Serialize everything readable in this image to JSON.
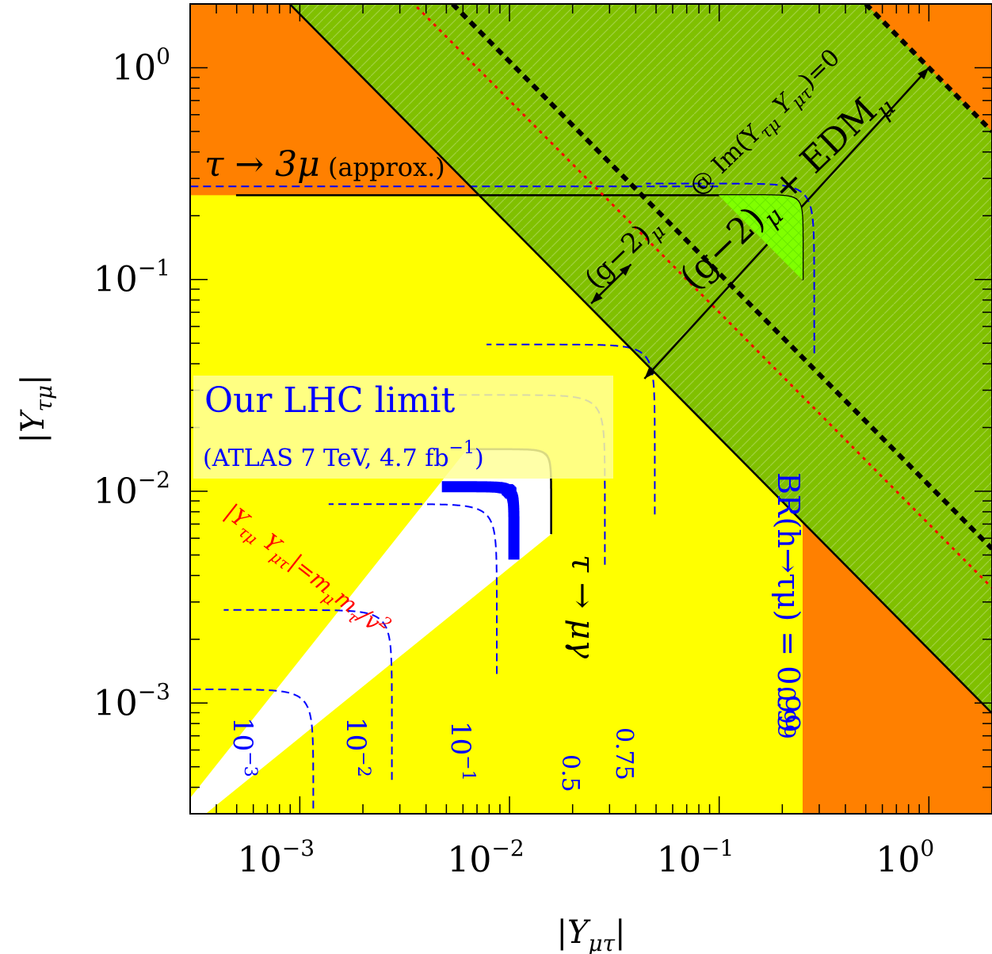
{
  "chart_data": {
    "type": "contour",
    "title": "",
    "xlabel": "|Y_{μτ}|",
    "ylabel": "|Y_{τμ}|",
    "x_scale": "log",
    "y_scale": "log",
    "xlim": [
      0.0003,
      2
    ],
    "ylim": [
      0.0003,
      2
    ],
    "grid": false,
    "x_ticks": [
      {
        "base": "10",
        "exp": "−3"
      },
      {
        "base": "10",
        "exp": "−2"
      },
      {
        "base": "10",
        "exp": "−1"
      },
      {
        "base": "10",
        "exp": "0"
      }
    ],
    "y_ticks": [
      {
        "base": "10",
        "exp": "−3"
      },
      {
        "base": "10",
        "exp": "−2"
      },
      {
        "base": "10",
        "exp": "−1"
      },
      {
        "base": "10",
        "exp": "0"
      }
    ],
    "tick_values": [
      0.001,
      0.01,
      0.1,
      1
    ],
    "regions": [
      {
        "id": "excluded-orange",
        "color": "#ff8000"
      },
      {
        "id": "excluded-tau-mu-gamma",
        "color": "#ffff00"
      },
      {
        "id": "g-2-favoured",
        "color": "#80ff00"
      },
      {
        "id": "g-2-and-edm",
        "color": "#80c000"
      }
    ],
    "boundaries": {
      "tau_3mu_limit": 0.25,
      "br_limit": 0.25,
      "tau_mu_gamma_limit": 0.0158,
      "our_lhc_limit": 0.0105,
      "diagonal_product": 0.00179,
      "edm_product": 1.0,
      "naturalness_product": 7e-06
    },
    "br_contours": [
      {
        "label": "10",
        "exp": "−3",
        "value": 0.001,
        "level": 0.00116
      },
      {
        "label": "10",
        "exp": "−2",
        "value": 0.01,
        "level": 0.00275
      },
      {
        "label": "10",
        "exp": "−1",
        "value": 0.1,
        "level": 0.0087
      },
      {
        "label": "0.5",
        "value": 0.5,
        "level": 0.0285
      },
      {
        "label": "0.75",
        "value": 0.75,
        "level": 0.0493
      },
      {
        "label": "0.99",
        "value": 0.99,
        "level": 0.284
      }
    ],
    "annotations": {
      "tau3mu": {
        "main": "τ → 3μ",
        "sub": "(approx.)"
      },
      "lhc": {
        "line1": "Our LHC limit",
        "line2": "(ATLAS 7 TeV, 4.7 fb",
        "line2_exp": "−1",
        "line2_end": ")"
      },
      "taumugamma": "τ → μγ",
      "br": "BR(h→τμ) = 0.99",
      "gm2": {
        "base": "(g−2)",
        "sub": "μ"
      },
      "gm2edm": {
        "base": "(g−2)",
        "sub": "μ",
        "mid": " + EDM",
        "sub2": "μ"
      },
      "imzero": {
        "text": "@ Im(Y",
        "s1": "τμ",
        "mid": "Y",
        "s2": "μτ",
        "end": ")=0"
      },
      "naturalness": {
        "text": "|Y",
        "s1": "τμ",
        "mid": "Y",
        "s2": "μτ",
        "eq": "|=m",
        "s3": "μ",
        "m2": "m",
        "s4": "τ",
        "div": "/v",
        "sup": "2"
      }
    },
    "colors": {
      "orange": "#ff8000",
      "yellow": "#ffff00",
      "lightgreen": "#80ff00",
      "darkgreen": "#80c000",
      "blue": "#0000ff",
      "red": "#ff0000",
      "black": "#000000"
    }
  }
}
